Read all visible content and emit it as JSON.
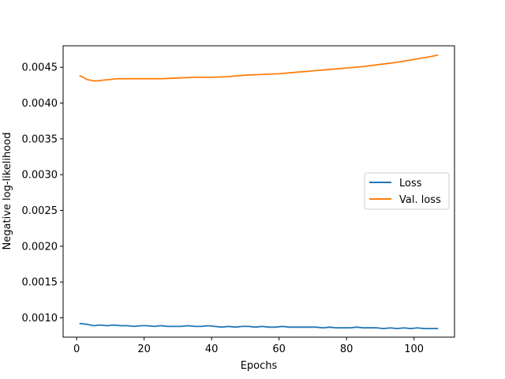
{
  "chart_data": {
    "type": "line",
    "title": "",
    "xlabel": "Epochs",
    "ylabel": "Negative log-likelihood",
    "xlim": [
      -4,
      112
    ],
    "ylim": [
      0.00073,
      0.0048
    ],
    "xticks": [
      0,
      20,
      40,
      60,
      80,
      100
    ],
    "xtick_labels": [
      "0",
      "20",
      "40",
      "60",
      "80",
      "100"
    ],
    "yticks": [
      0.001,
      0.0015,
      0.002,
      0.0025,
      0.003,
      0.0035,
      0.004,
      0.0045
    ],
    "ytick_labels": [
      "0.0010",
      "0.0015",
      "0.0020",
      "0.0025",
      "0.0030",
      "0.0035",
      "0.0040",
      "0.0045"
    ],
    "grid": false,
    "legend_position": "center-right",
    "series": [
      {
        "name": "Loss",
        "color": "#1f77b4",
        "x": [
          1,
          3,
          5,
          7,
          9,
          11,
          13,
          15,
          17,
          19,
          21,
          23,
          25,
          27,
          29,
          31,
          33,
          35,
          37,
          39,
          41,
          43,
          45,
          47,
          49,
          51,
          53,
          55,
          57,
          59,
          61,
          63,
          65,
          67,
          69,
          71,
          73,
          75,
          77,
          79,
          81,
          83,
          85,
          87,
          89,
          91,
          93,
          95,
          97,
          99,
          101,
          103,
          105,
          107
        ],
        "y": [
          0.00092,
          0.00091,
          0.00089,
          0.0009,
          0.00089,
          0.0009,
          0.00089,
          0.00089,
          0.00088,
          0.00089,
          0.00089,
          0.00088,
          0.00089,
          0.00088,
          0.00088,
          0.00088,
          0.00089,
          0.00088,
          0.00088,
          0.00089,
          0.00088,
          0.00087,
          0.00088,
          0.00087,
          0.00088,
          0.00088,
          0.00087,
          0.00088,
          0.00087,
          0.00087,
          0.00088,
          0.00087,
          0.00087,
          0.00087,
          0.00087,
          0.00087,
          0.00086,
          0.00087,
          0.00086,
          0.00086,
          0.00086,
          0.00087,
          0.00086,
          0.00086,
          0.00086,
          0.00085,
          0.00086,
          0.00085,
          0.00086,
          0.00085,
          0.00086,
          0.00085,
          0.00085,
          0.00085
        ]
      },
      {
        "name": "Val. loss",
        "color": "#ff7f0e",
        "x": [
          1,
          2,
          3,
          4,
          5,
          6,
          8,
          10,
          12,
          15,
          18,
          20,
          25,
          30,
          35,
          40,
          45,
          50,
          55,
          60,
          65,
          70,
          75,
          80,
          85,
          90,
          95,
          100,
          105,
          107
        ],
        "y": [
          0.00438,
          0.00436,
          0.00433,
          0.00432,
          0.00431,
          0.00431,
          0.00432,
          0.00433,
          0.00434,
          0.00434,
          0.00434,
          0.00434,
          0.00434,
          0.00435,
          0.00436,
          0.00436,
          0.00437,
          0.00439,
          0.0044,
          0.00441,
          0.00443,
          0.00445,
          0.00447,
          0.00449,
          0.00451,
          0.00454,
          0.00457,
          0.00461,
          0.00465,
          0.00467
        ]
      }
    ]
  }
}
